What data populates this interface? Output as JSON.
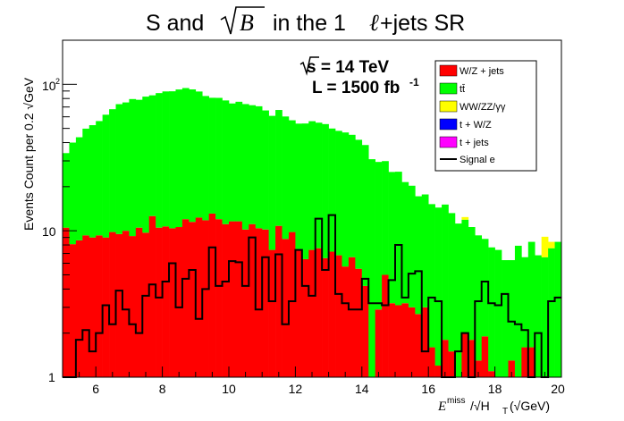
{
  "chart_data": {
    "type": "histogram-stacked-log",
    "title": {
      "prefix": "S and ",
      "radicand": "B",
      "suffix_pre": " in the 1",
      "lepton": "ℓ",
      "suffix_post": "+jets SR"
    },
    "annotation": {
      "energy_line": "s = 14 TeV",
      "lumi_line": "L = 1500 fb",
      "lumi_exp": "-1"
    },
    "xaxis": {
      "label_main": "E",
      "label_sup": "miss",
      "label_rest": "/√H",
      "label_sub": "T",
      "label_paren": "(√GeV)",
      "range": [
        5,
        20
      ],
      "ticks": [
        "6",
        "8",
        "10",
        "12",
        "14",
        "16",
        "18",
        "20"
      ]
    },
    "yaxis": {
      "label": "Events Count per 0.2 √GeV",
      "log": true,
      "range": [
        1,
        200
      ],
      "tick_labels": [
        {
          "value": 1,
          "text": "1"
        },
        {
          "value": 10,
          "text": "10"
        },
        {
          "value": 100,
          "text": "10",
          "exp": "2"
        }
      ]
    },
    "legend": {
      "placement": "top-right",
      "entries": [
        {
          "label": "W/Z + jets",
          "color": "#ff0000",
          "kind": "fill"
        },
        {
          "label": "tt̄",
          "color": "#00ff00",
          "kind": "fill"
        },
        {
          "label": "WW/ZZ/γγ",
          "color": "#ffff00",
          "kind": "fill"
        },
        {
          "label": "t + W/Z",
          "color": "#0000ff",
          "kind": "fill"
        },
        {
          "label": "t + jets",
          "color": "#ff00ff",
          "kind": "fill"
        },
        {
          "label": "Signal e",
          "color": "#000000",
          "kind": "line"
        }
      ]
    },
    "bin_edges": {
      "start": 5.0,
      "width": 0.2,
      "count": 75
    },
    "series": [
      {
        "name": "W/Z + jets",
        "color": "#ff0000",
        "values": [
          10.5,
          8.1,
          8.6,
          9.3,
          9.0,
          9.3,
          9.0,
          9.8,
          9.5,
          10.0,
          9.2,
          10.5,
          9.7,
          12.6,
          10.5,
          10.7,
          10.4,
          10.6,
          12.0,
          11.5,
          12.3,
          11.8,
          13.1,
          12.0,
          11.1,
          11.6,
          11.6,
          10.2,
          11.1,
          10.4,
          10.2,
          7.4,
          10.8,
          8.8,
          9.8,
          7.5,
          6.4,
          7.4,
          7.6,
          6.5,
          7.2,
          6.8,
          5.7,
          6.6,
          5.5,
          4.2,
          1.0,
          2.9,
          5.0,
          3.2,
          3.1,
          3.2,
          3.0,
          2.7,
          3.0,
          1.6,
          1.2,
          1.8,
          1.5,
          1.0,
          2.0,
          1.8,
          1.3,
          1.9,
          1.1,
          1.0,
          1.0,
          1.3,
          1.0,
          1.6,
          1.6,
          1.0,
          1.0,
          1.0,
          1.0
        ]
      },
      {
        "name": "tt̄",
        "color": "#00ff00",
        "values": [
          23.4,
          31.9,
          34.9,
          40.5,
          43.6,
          46.8,
          53.0,
          57.8,
          63.7,
          65.2,
          70.1,
          67.9,
          72.7,
          71.5,
          76.6,
          78.7,
          79.2,
          81.6,
          82.3,
          80.8,
          77.0,
          71.4,
          67.8,
          68.8,
          66.5,
          62.4,
          64.4,
          63.1,
          60.9,
          60.4,
          56.1,
          53.5,
          56.0,
          51.5,
          47.0,
          46.4,
          47.6,
          48.6,
          47.1,
          47.0,
          42.7,
          41.3,
          41.2,
          38.6,
          36.3,
          34.3,
          29.8,
          26.6,
          24.9,
          22.0,
          22.2,
          18.3,
          17.3,
          14.5,
          14.7,
          13.6,
          13.2,
          13.3,
          11.7,
          10.2,
          9.9,
          8.8,
          8.0,
          6.9,
          6.6,
          6.4,
          5.3,
          5.0,
          6.9,
          5.0,
          6.8,
          5.8,
          5.6,
          6.6,
          7.4
        ]
      },
      {
        "name": "WW/ZZ/γγ",
        "color": "#ffff00",
        "values": [
          0,
          0,
          0,
          0,
          0,
          0,
          0,
          0,
          0,
          0,
          0,
          0,
          0,
          0,
          0,
          0,
          0,
          0,
          0,
          0,
          0,
          0,
          0,
          0,
          0,
          0,
          0,
          0,
          0,
          0,
          0,
          0,
          0,
          0,
          0,
          0,
          0,
          0,
          0,
          0,
          0,
          0,
          0,
          0,
          0,
          0,
          0,
          0,
          0,
          0,
          0,
          0,
          0,
          0,
          0,
          0,
          0,
          0,
          0,
          0,
          0.5,
          0,
          0,
          0,
          0,
          0,
          0,
          0,
          0,
          0,
          0,
          0,
          2.5,
          0.8,
          0
        ]
      },
      {
        "name": "t + W/Z",
        "color": "#0000ff",
        "values": [
          0,
          0,
          0,
          0,
          0,
          0,
          0,
          0,
          0,
          0,
          0,
          0,
          0,
          0,
          0,
          0,
          0,
          0,
          0,
          0,
          0,
          0,
          0,
          0,
          0,
          0,
          0,
          0,
          0,
          0,
          0,
          0,
          0,
          0,
          0,
          0,
          0,
          0,
          0,
          0,
          0,
          0,
          0,
          0,
          0,
          0,
          0,
          0,
          0,
          0,
          0,
          0,
          0,
          0,
          0,
          0,
          0,
          0,
          0,
          0,
          0,
          0,
          0,
          0,
          0,
          0,
          0,
          0,
          0,
          0,
          0,
          0,
          0,
          0,
          0
        ]
      },
      {
        "name": "t + jets",
        "color": "#ff00ff",
        "values": [
          0,
          0,
          0,
          0,
          0,
          0,
          0,
          0,
          0,
          0,
          0,
          0,
          0,
          0,
          0,
          0,
          0,
          0,
          0,
          0,
          0,
          0,
          0,
          0,
          0,
          0,
          0,
          0,
          0,
          0,
          0,
          0,
          0,
          0,
          0,
          0,
          0,
          0,
          0,
          0,
          0,
          0,
          0,
          0,
          0,
          0,
          0,
          0,
          0,
          0,
          0,
          0,
          0,
          0,
          0,
          0,
          0,
          0,
          0,
          0,
          0,
          0,
          0,
          0,
          0,
          0,
          0,
          0,
          0,
          0,
          0,
          0,
          0,
          0,
          0
        ]
      },
      {
        "name": "Signal e",
        "color": "#000000",
        "kind": "step-line",
        "values": [
          1.0,
          1.0,
          1.8,
          2.1,
          1.5,
          2.0,
          3.1,
          2.3,
          3.9,
          2.9,
          2.3,
          2.0,
          3.6,
          4.3,
          3.5,
          4.5,
          6.0,
          3.0,
          4.7,
          5.4,
          2.5,
          4.0,
          7.7,
          4.2,
          4.5,
          6.2,
          6.1,
          4.2,
          9.0,
          2.9,
          6.6,
          3.3,
          6.9,
          2.3,
          3.3,
          7.4,
          4.2,
          3.6,
          12.1,
          5.4,
          12.8,
          3.7,
          3.2,
          2.9,
          2.9,
          4.7,
          3.2,
          3.2,
          3.1,
          4.6,
          8.0,
          3.5,
          5.1,
          5.3,
          1.5,
          3.5,
          3.3,
          1.0,
          1.0,
          1.5,
          2.0,
          1.0,
          3.3,
          4.5,
          3.2,
          3.1,
          3.7,
          2.4,
          2.3,
          2.1,
          1.0,
          2.0,
          1.0,
          3.3,
          3.5
        ]
      }
    ]
  }
}
